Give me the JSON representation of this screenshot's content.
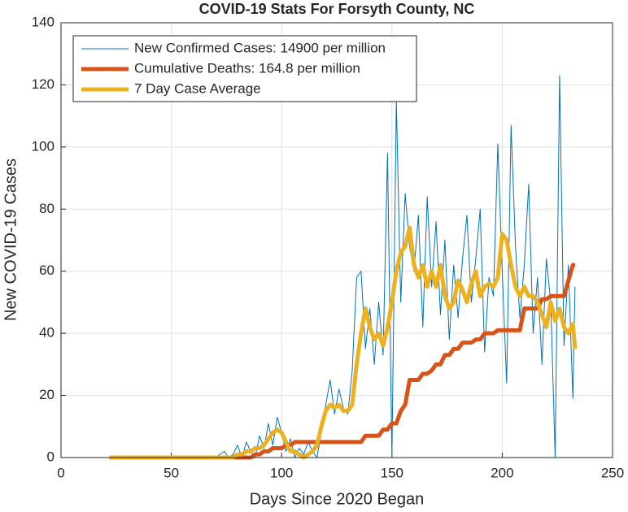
{
  "chart_data": {
    "type": "line",
    "title": "COVID-19 Stats For Forsyth County, NC",
    "x_label": "Days Since 2020 Began",
    "y_label": "New COVID-19 Cases",
    "xlim": [
      0,
      250
    ],
    "xticks": [
      0,
      50,
      100,
      150,
      200,
      250
    ],
    "ylim": [
      0,
      140
    ],
    "yticks": [
      0,
      20,
      40,
      60,
      80,
      100,
      120,
      140
    ],
    "grid": true,
    "legend": "northwest",
    "x": [
      22,
      30,
      40,
      50,
      60,
      70,
      74,
      76,
      78,
      80,
      82,
      84,
      86,
      88,
      90,
      92,
      94,
      96,
      98,
      100,
      102,
      104,
      106,
      108,
      110,
      112,
      114,
      116,
      118,
      120,
      122,
      124,
      126,
      128,
      130,
      132,
      134,
      136,
      138,
      140,
      142,
      144,
      146,
      148,
      150,
      152,
      154,
      156,
      158,
      160,
      162,
      164,
      166,
      168,
      170,
      172,
      174,
      176,
      178,
      180,
      182,
      184,
      186,
      188,
      190,
      192,
      194,
      196,
      198,
      200,
      202,
      204,
      206,
      208,
      210,
      212,
      214,
      216,
      218,
      220,
      222,
      224,
      226,
      228,
      230,
      232,
      233
    ],
    "series": [
      {
        "name": "New Confirmed Cases: 14900 per million",
        "color": "#0072bd",
        "linewidth": 1,
        "values": [
          0,
          0,
          0,
          0,
          0,
          0,
          2,
          0,
          1,
          4,
          0,
          5,
          2,
          0,
          7,
          3,
          11,
          4,
          13,
          8,
          2,
          6,
          0,
          3,
          1,
          5,
          2,
          0,
          8,
          17,
          25,
          14,
          22,
          16,
          14,
          28,
          58,
          60,
          35,
          48,
          30,
          50,
          33,
          98,
          0,
          115,
          50,
          85,
          68,
          60,
          78,
          42,
          84,
          55,
          76,
          46,
          70,
          38,
          62,
          45,
          64,
          78,
          50,
          64,
          80,
          34,
          58,
          52,
          101,
          60,
          24,
          107,
          68,
          45,
          62,
          88,
          40,
          58,
          30,
          64,
          50,
          0,
          123,
          36,
          62,
          19,
          55
        ]
      },
      {
        "name": "Cumulative Deaths: 164.8 per million",
        "color": "#d95319",
        "linewidth": 5,
        "values": [
          0,
          0,
          0,
          0,
          0,
          0,
          0,
          0,
          0,
          0,
          0,
          0,
          0,
          1,
          1,
          2,
          2,
          3,
          3,
          3,
          4,
          4,
          5,
          5,
          5,
          5,
          5,
          5,
          5,
          5,
          5,
          5,
          5,
          5,
          5,
          5,
          5,
          5,
          7,
          7,
          7,
          7,
          9,
          9,
          11,
          11,
          15,
          17,
          25,
          25,
          25,
          27,
          27,
          28,
          30,
          30,
          33,
          33,
          35,
          35,
          37,
          37,
          37,
          38,
          38,
          40,
          40,
          40,
          41,
          41,
          41,
          41,
          41,
          41,
          48,
          48,
          48,
          48,
          51,
          51,
          52,
          52,
          52,
          52,
          57,
          62,
          62
        ]
      },
      {
        "name": "7 Day Case Average",
        "color": "#edb120",
        "linewidth": 5,
        "values": [
          0,
          0,
          0,
          0,
          0,
          0,
          0,
          0,
          0,
          1,
          1,
          2,
          2,
          3,
          3,
          4,
          6,
          8,
          9,
          8,
          5,
          2,
          2,
          1,
          0,
          1,
          2,
          4,
          10,
          15,
          17,
          16,
          17,
          15,
          15,
          17,
          30,
          40,
          48,
          42,
          38,
          40,
          36,
          42,
          50,
          60,
          66,
          68,
          74,
          62,
          58,
          62,
          55,
          60,
          55,
          62,
          52,
          48,
          50,
          57,
          54,
          50,
          56,
          60,
          52,
          55,
          56,
          55,
          58,
          72,
          70,
          62,
          55,
          52,
          55,
          52,
          52,
          50,
          46,
          42,
          50,
          44,
          48,
          42,
          40,
          43,
          35
        ]
      }
    ]
  }
}
